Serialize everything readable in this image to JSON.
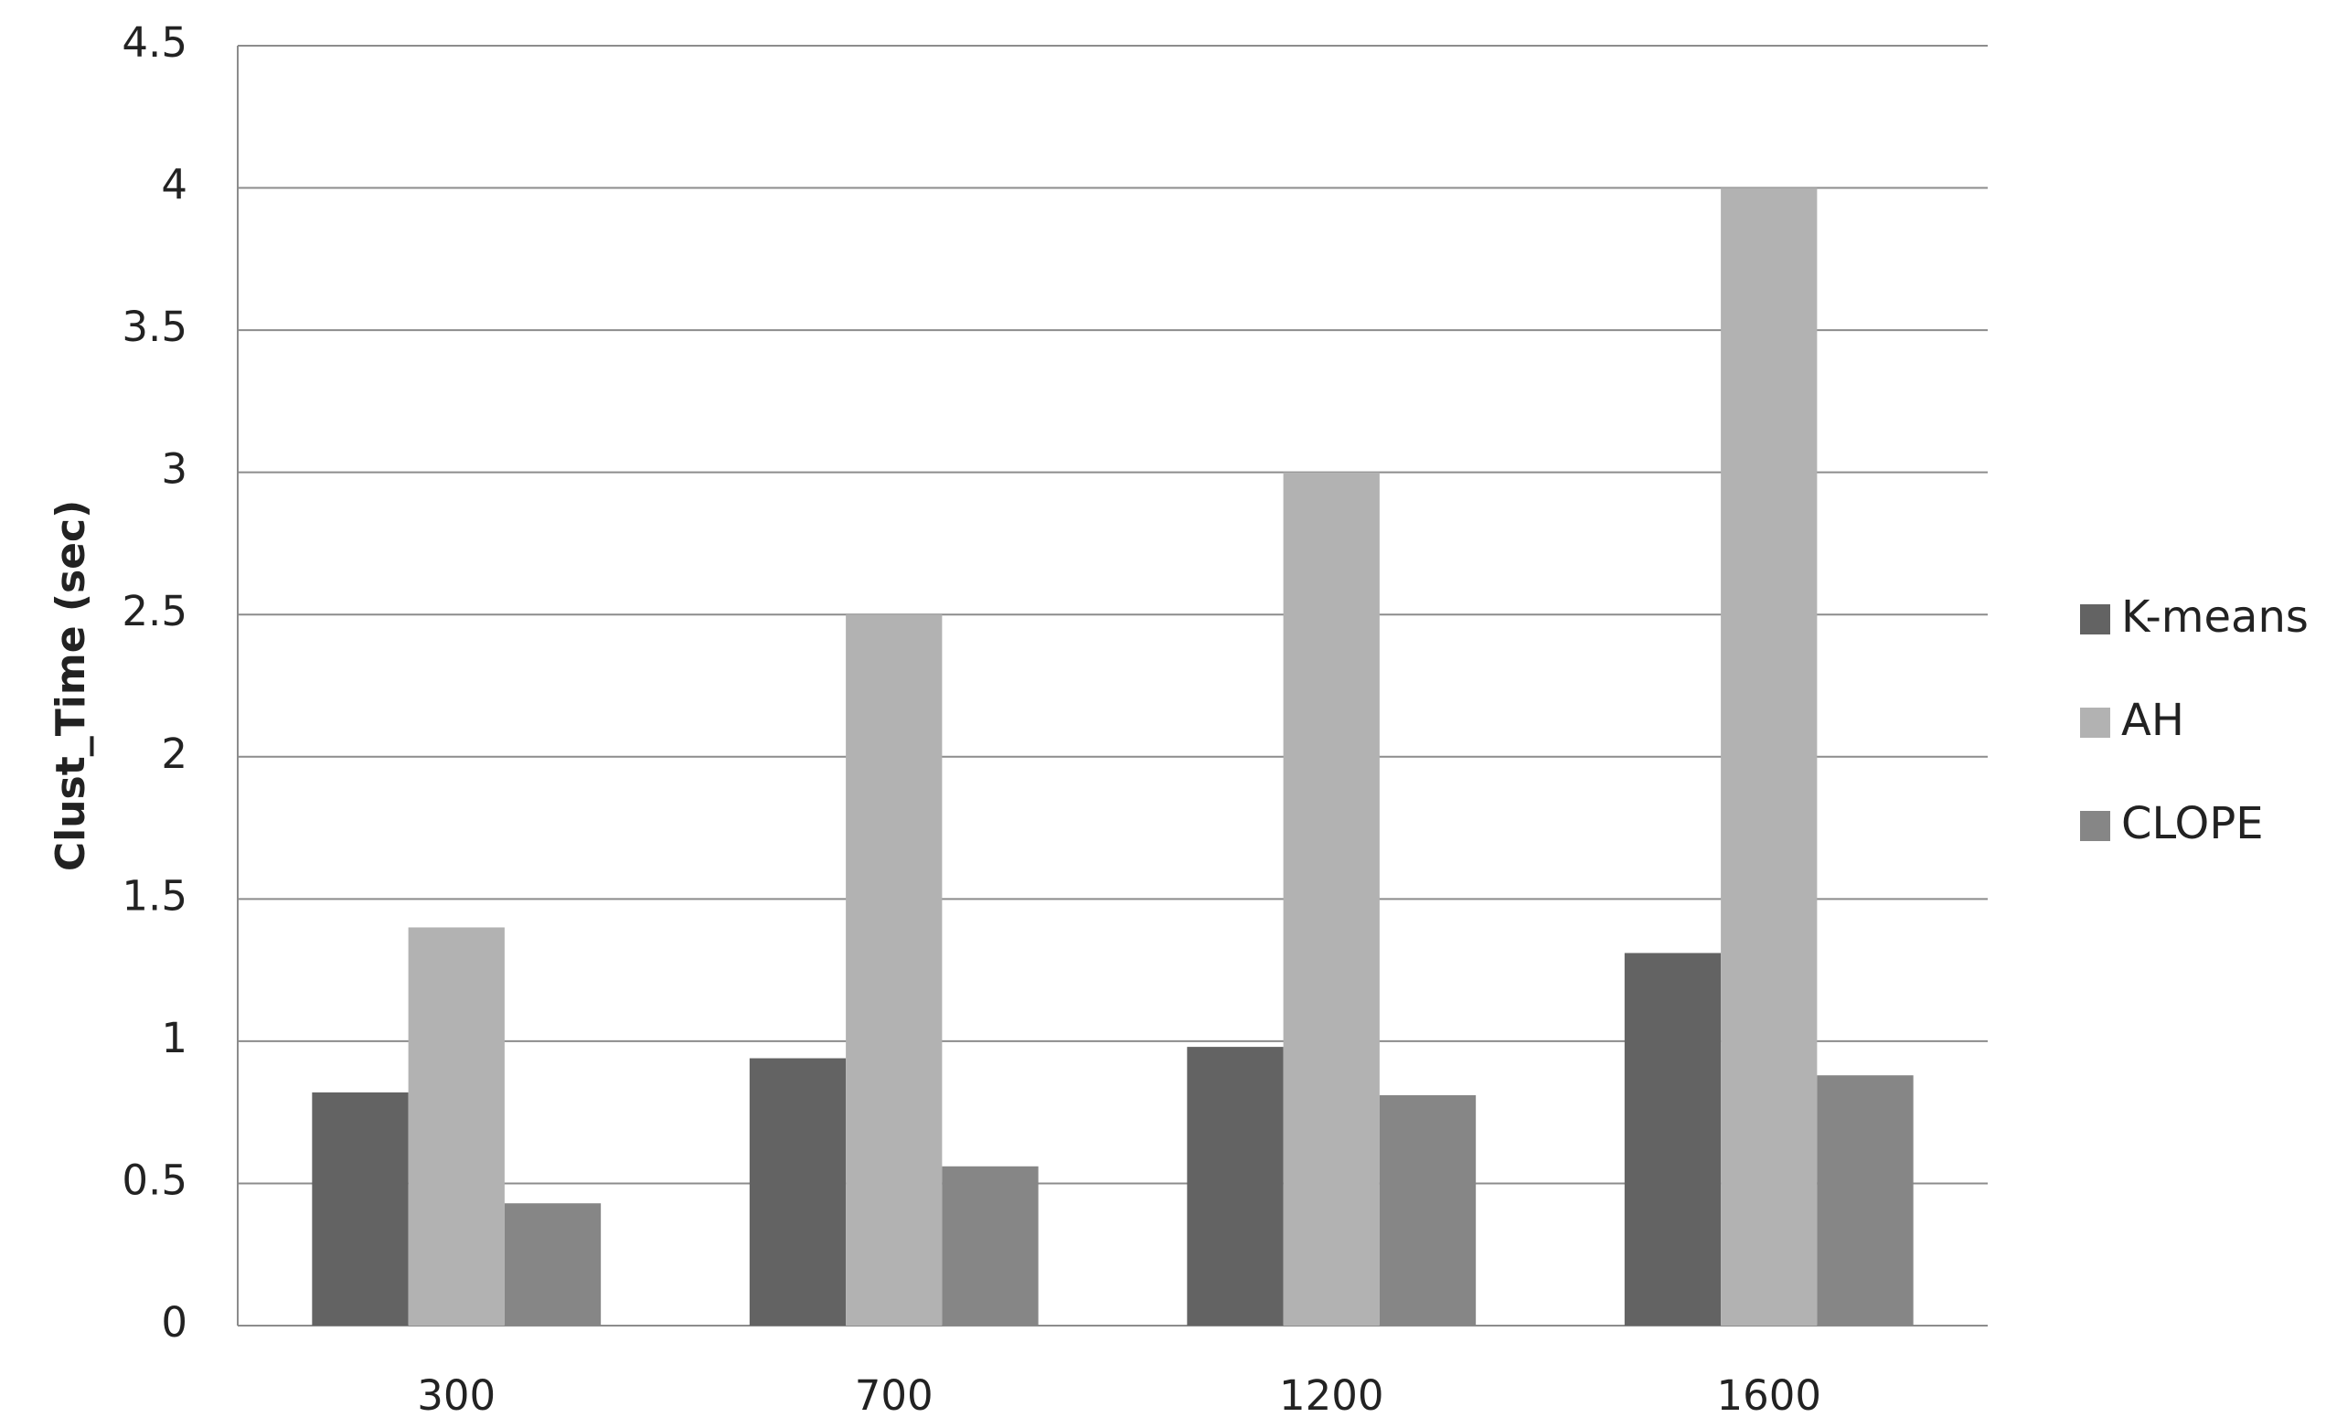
{
  "chart_data": {
    "type": "bar",
    "y_label": "Clust_Time (sec)",
    "categories": [
      "300",
      "700",
      "1200",
      "1600"
    ],
    "series": [
      {
        "name": "K-means",
        "color": "#636363",
        "values": [
          0.82,
          0.94,
          0.98,
          1.31
        ]
      },
      {
        "name": "AH",
        "color": "#b2b2b2",
        "values": [
          1.4,
          2.5,
          3.0,
          4.0
        ]
      },
      {
        "name": "CLOPE",
        "color": "#868686",
        "values": [
          0.43,
          0.56,
          0.81,
          0.88
        ]
      }
    ],
    "ylim": [
      0,
      4.5
    ],
    "yticks": [
      0,
      0.5,
      1,
      1.5,
      2,
      2.5,
      3,
      3.5,
      4,
      4.5
    ],
    "grid": true,
    "legend": "right"
  }
}
